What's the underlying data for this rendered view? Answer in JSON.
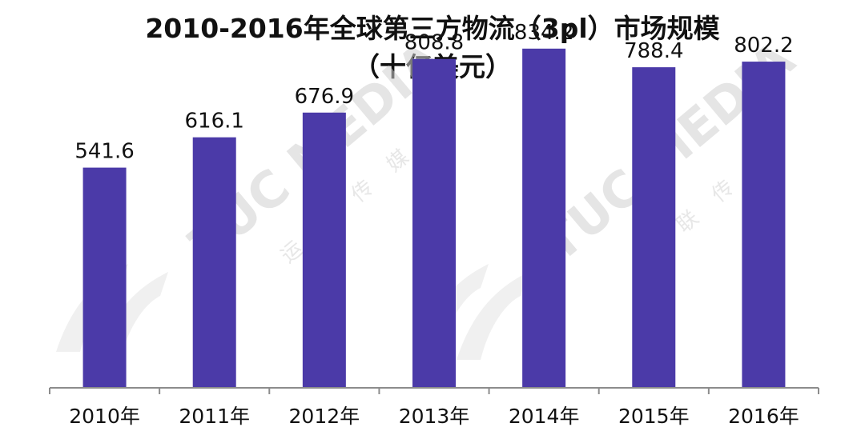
{
  "chart_data": {
    "type": "bar",
    "title": "2010-2016年全球第三方物流（3pl）市场规模",
    "subtitle": "（十亿美元）",
    "categories": [
      "2010年",
      "2011年",
      "2012年",
      "2013年",
      "2014年",
      "2015年",
      "2016年"
    ],
    "values": [
      541.6,
      616.1,
      676.9,
      808.8,
      834.2,
      788.4,
      802.2
    ],
    "value_labels": [
      "541.6",
      "616.1",
      "676.9",
      "808.8",
      "834.2",
      "788.4",
      "802.2"
    ],
    "xlabel": "",
    "ylabel": "",
    "bar_color": "#4b3aa8",
    "grid": false,
    "legend": "none"
  },
  "watermark": {
    "brand": "TUC MEDIA",
    "chars_left": [
      "运",
      "联",
      "传",
      "媒"
    ],
    "chars_right": [
      "运",
      "联",
      "传",
      "媒"
    ],
    "color": "#d9d9d9"
  }
}
